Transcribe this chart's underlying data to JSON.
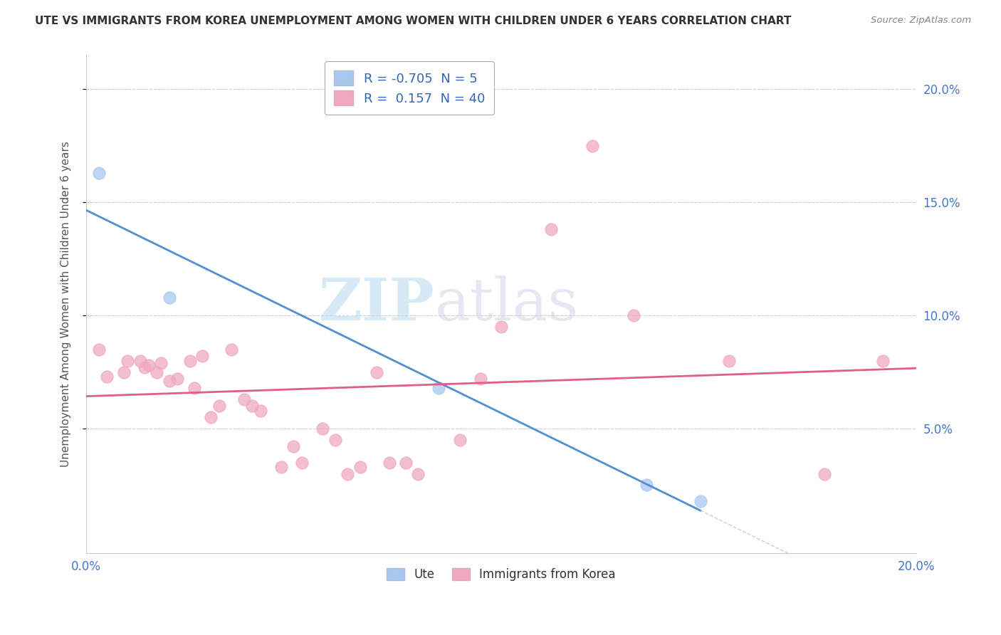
{
  "title": "UTE VS IMMIGRANTS FROM KOREA UNEMPLOYMENT AMONG WOMEN WITH CHILDREN UNDER 6 YEARS CORRELATION CHART",
  "source": "Source: ZipAtlas.com",
  "ylabel": "Unemployment Among Women with Children Under 6 years",
  "xlim": [
    0.0,
    0.2
  ],
  "ylim": [
    -0.005,
    0.215
  ],
  "yticks": [
    0.05,
    0.1,
    0.15,
    0.2
  ],
  "ytick_labels": [
    "5.0%",
    "10.0%",
    "15.0%",
    "20.0%"
  ],
  "legend_R_ute": "-0.705",
  "legend_N_ute": "5",
  "legend_R_korea": "0.157",
  "legend_N_korea": "40",
  "color_ute": "#a8c8f0",
  "color_korea": "#f0a8c0",
  "line_color_ute": "#5090d0",
  "line_color_korea": "#e06080",
  "watermark_zip": "ZIP",
  "watermark_atlas": "atlas",
  "ute_points": [
    [
      0.003,
      0.163
    ],
    [
      0.02,
      0.108
    ],
    [
      0.085,
      0.068
    ],
    [
      0.135,
      0.025
    ],
    [
      0.148,
      0.018
    ]
  ],
  "korea_points": [
    [
      0.003,
      0.085
    ],
    [
      0.005,
      0.073
    ],
    [
      0.009,
      0.075
    ],
    [
      0.01,
      0.08
    ],
    [
      0.013,
      0.08
    ],
    [
      0.014,
      0.077
    ],
    [
      0.015,
      0.078
    ],
    [
      0.017,
      0.075
    ],
    [
      0.018,
      0.079
    ],
    [
      0.02,
      0.071
    ],
    [
      0.022,
      0.072
    ],
    [
      0.025,
      0.08
    ],
    [
      0.026,
      0.068
    ],
    [
      0.028,
      0.082
    ],
    [
      0.03,
      0.055
    ],
    [
      0.032,
      0.06
    ],
    [
      0.035,
      0.085
    ],
    [
      0.038,
      0.063
    ],
    [
      0.04,
      0.06
    ],
    [
      0.042,
      0.058
    ],
    [
      0.047,
      0.033
    ],
    [
      0.05,
      0.042
    ],
    [
      0.052,
      0.035
    ],
    [
      0.057,
      0.05
    ],
    [
      0.06,
      0.045
    ],
    [
      0.063,
      0.03
    ],
    [
      0.066,
      0.033
    ],
    [
      0.07,
      0.075
    ],
    [
      0.073,
      0.035
    ],
    [
      0.077,
      0.035
    ],
    [
      0.08,
      0.03
    ],
    [
      0.09,
      0.045
    ],
    [
      0.095,
      0.072
    ],
    [
      0.1,
      0.095
    ],
    [
      0.112,
      0.138
    ],
    [
      0.122,
      0.175
    ],
    [
      0.132,
      0.1
    ],
    [
      0.155,
      0.08
    ],
    [
      0.178,
      0.03
    ],
    [
      0.192,
      0.08
    ]
  ],
  "ute_line_x": [
    0.0,
    0.148
  ],
  "korea_line_x": [
    0.0,
    0.2
  ]
}
